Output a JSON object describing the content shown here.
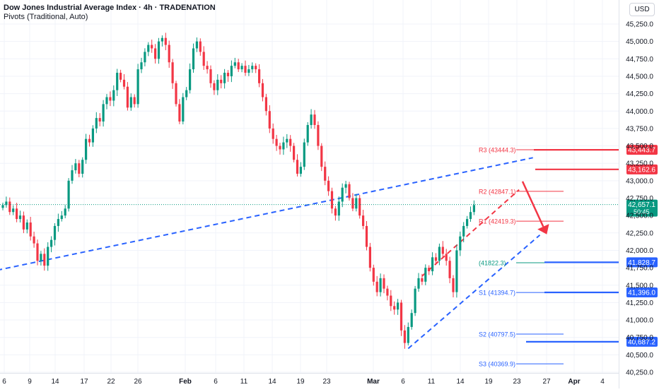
{
  "header": {
    "title": "Dow Jones Industrial Average Index · 4h · TRADENATION",
    "indicator": "Pivots (Traditional, Auto)"
  },
  "currency_button": "USD",
  "colors": {
    "up": "#089981",
    "down": "#f23645",
    "red": "#f23645",
    "blue": "#2962ff",
    "green": "#089981",
    "grid": "#f0f3fa",
    "axis_text": "#131722"
  },
  "chart_data": {
    "type": "line",
    "title": "Dow Jones Industrial Average Index · 4h · TRADENATION",
    "xlabel": "",
    "ylabel": "",
    "ylim": [
      40120,
      45480
    ],
    "y_ticks": [
      45250,
      45000,
      44750,
      44500,
      44250,
      44000,
      43750,
      43500,
      43250,
      43000,
      42750,
      42500,
      42250,
      42000,
      41750,
      41500,
      41250,
      41000,
      40750,
      40500,
      40250
    ],
    "x_tick_labels": [
      "6",
      "9",
      "14",
      "17",
      "22",
      "26",
      "Feb",
      "6",
      "11",
      "14",
      "19",
      "23",
      "Mar",
      "6",
      "11",
      "14",
      "19",
      "23",
      "27",
      "Apr",
      "4"
    ],
    "grid": true,
    "series": [
      {
        "values": [
          42650,
          42700,
          42550,
          42600,
          42450,
          42500,
          42300,
          42400,
          42200,
          42100,
          41850,
          41950,
          41780,
          42050,
          42150,
          42350,
          42450,
          42500,
          42600,
          43000,
          43150,
          43250,
          43100,
          43300,
          43600,
          43550,
          43750,
          43900,
          43850,
          44100,
          44200,
          44150,
          44300,
          44550,
          44450,
          44350,
          44050,
          44200,
          44100,
          44600,
          44700,
          44850,
          44950,
          44900,
          44750,
          45000,
          45050,
          44950,
          44700,
          44400,
          44100,
          43850,
          44200,
          44300,
          44600,
          44900,
          45000,
          44850,
          44650,
          44600,
          44400,
          44300,
          44450,
          44400,
          44550,
          44500,
          44650,
          44700,
          44600,
          44650,
          44550,
          44600,
          44650,
          44600,
          44400,
          44200,
          44000,
          43750,
          43600,
          43500,
          43450,
          43550,
          43600,
          43500,
          43300,
          43100,
          43200,
          43550,
          43800,
          43950,
          43800,
          43500,
          43200,
          43000,
          42850,
          42600,
          42500,
          42700,
          42900,
          42950,
          42750,
          42600,
          42750,
          42500,
          42350,
          42050,
          41750,
          41550,
          41400,
          41600,
          41450,
          41350,
          41200,
          41150,
          41250,
          40850,
          40670,
          40900,
          41100,
          41450,
          41600,
          41550,
          41750,
          41700,
          41900,
          41850,
          42050,
          41950,
          41850,
          41600,
          41400,
          42000,
          42200,
          42350,
          42450,
          42550,
          42650
        ]
      }
    ],
    "annotations": {
      "current_price": {
        "value": 42657.1,
        "label": "42,657.1",
        "countdown": "50:45"
      },
      "price_levels": [
        {
          "value": 43443.7,
          "label": "43,443.7",
          "color": "red"
        },
        {
          "value": 43162.6,
          "label": "43,162.6",
          "color": "red"
        },
        {
          "value": 41828.7,
          "label": "41,828.7",
          "color": "blue"
        },
        {
          "value": 41396.0,
          "label": "41,396.0",
          "color": "blue"
        },
        {
          "value": 40687.2,
          "label": "40,687.2",
          "color": "blue"
        }
      ],
      "pivots": [
        {
          "name": "R3",
          "value": 43444.3,
          "label": "R3 (43444.3)",
          "color": "red"
        },
        {
          "name": "R2",
          "value": 42847.1,
          "label": "R2 (42847.1)",
          "color": "red"
        },
        {
          "name": "R1",
          "value": 42419.3,
          "label": "R1 (42419.3)",
          "color": "red"
        },
        {
          "name": "P",
          "value": 41822.3,
          "label": "(41822.3)",
          "color": "green"
        },
        {
          "name": "S1",
          "value": 41394.7,
          "label": "S1 (41394.7)",
          "color": "blue"
        },
        {
          "name": "S2",
          "value": 40797.5,
          "label": "S2 (40797.5)",
          "color": "blue"
        },
        {
          "name": "S3",
          "value": 40369.9,
          "label": "S3 (40369.9)",
          "color": "blue"
        }
      ],
      "trendlines": [
        {
          "kind": "long-term support",
          "from": {
            "bar": -4,
            "value": 41690
          },
          "to": {
            "bar": 153,
            "value": 43330
          },
          "color": "blue"
        },
        {
          "kind": "channel support",
          "from": {
            "bar": 117,
            "value": 40590
          },
          "to": {
            "bar": 155,
            "value": 42220
          },
          "color": "blue"
        },
        {
          "kind": "channel resistance",
          "from": {
            "bar": 121,
            "value": 41630
          },
          "to": {
            "bar": 149,
            "value": 42870
          },
          "color": "red"
        }
      ],
      "arrow": {
        "direction": "down",
        "from": {
          "bar": 150,
          "value": 42990
        },
        "to": {
          "bar": 157,
          "value": 42230
        },
        "color": "red"
      }
    }
  }
}
